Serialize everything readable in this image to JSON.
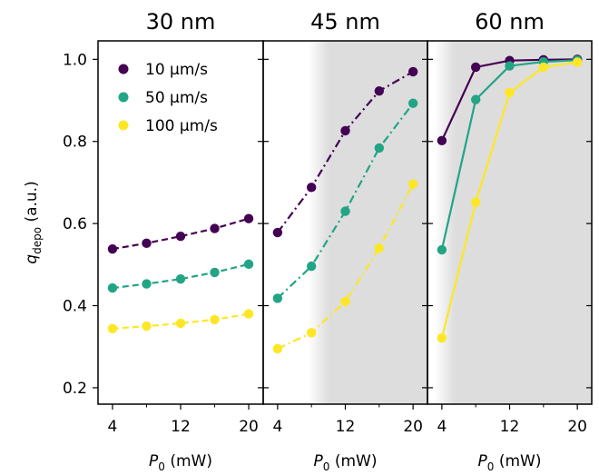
{
  "chart_data": [
    {
      "type": "line",
      "title": "30 nm",
      "xlabel": "P0 (mW)",
      "ylabel": "qdepo (a.u.)",
      "x": [
        4,
        8,
        12,
        16,
        20
      ],
      "xticks": [
        4,
        12,
        20
      ],
      "xlim": [
        2.3,
        21.7
      ],
      "ylim": [
        0.16,
        1.045
      ],
      "yticks": [
        0.2,
        0.4,
        0.6,
        0.8,
        1.0
      ],
      "line_style": "dashed",
      "shaded_region": null,
      "series": [
        {
          "name": "10 µm/s",
          "color": "#440154",
          "values": [
            0.538,
            0.552,
            0.569,
            0.588,
            0.612
          ]
        },
        {
          "name": "50 µm/s",
          "color": "#21a585",
          "values": [
            0.443,
            0.453,
            0.465,
            0.481,
            0.501
          ]
        },
        {
          "name": "100 µm/s",
          "color": "#fde725",
          "values": [
            0.344,
            0.35,
            0.357,
            0.366,
            0.38
          ]
        }
      ]
    },
    {
      "type": "line",
      "title": "45 nm",
      "xlabel": "P0 (mW)",
      "ylabel": "",
      "x": [
        4,
        8,
        12,
        16,
        20
      ],
      "xticks": [
        4,
        12,
        20
      ],
      "xlim": [
        2.3,
        21.7
      ],
      "ylim": [
        0.16,
        1.045
      ],
      "yticks": [
        0.2,
        0.4,
        0.6,
        0.8,
        1.0
      ],
      "line_style": "dashdot",
      "shaded_region": [
        10,
        21.7
      ],
      "series": [
        {
          "name": "10 µm/s",
          "color": "#440154",
          "values": [
            0.578,
            0.688,
            0.826,
            0.923,
            0.97
          ]
        },
        {
          "name": "50 µm/s",
          "color": "#21a585",
          "values": [
            0.418,
            0.496,
            0.63,
            0.784,
            0.893
          ]
        },
        {
          "name": "100 µm/s",
          "color": "#fde725",
          "values": [
            0.295,
            0.334,
            0.41,
            0.54,
            0.696
          ]
        }
      ]
    },
    {
      "type": "line",
      "title": "60 nm",
      "xlabel": "P0 (mW)",
      "ylabel": "",
      "x": [
        4,
        8,
        12,
        16,
        20
      ],
      "xticks": [
        4,
        12,
        20
      ],
      "xlim": [
        2.3,
        21.7
      ],
      "ylim": [
        0.16,
        1.045
      ],
      "yticks": [
        0.2,
        0.4,
        0.6,
        0.8,
        1.0
      ],
      "line_style": "solid",
      "shaded_region": [
        5.5,
        21.7
      ],
      "series": [
        {
          "name": "10 µm/s",
          "color": "#440154",
          "values": [
            0.802,
            0.981,
            0.997,
            0.999,
            1.0
          ]
        },
        {
          "name": "50 µm/s",
          "color": "#21a585",
          "values": [
            0.536,
            0.902,
            0.984,
            0.994,
            0.998
          ]
        },
        {
          "name": "100 µm/s",
          "color": "#fde725",
          "values": [
            0.321,
            0.652,
            0.919,
            0.981,
            0.993
          ]
        }
      ]
    }
  ],
  "legend": {
    "placement": "top-left of first panel",
    "entries": [
      {
        "label": "10 µm/s",
        "color": "#440154"
      },
      {
        "label": "50 µm/s",
        "color": "#21a585"
      },
      {
        "label": "100 µm/s",
        "color": "#fde725"
      }
    ]
  },
  "shade_color": "#dddddd"
}
